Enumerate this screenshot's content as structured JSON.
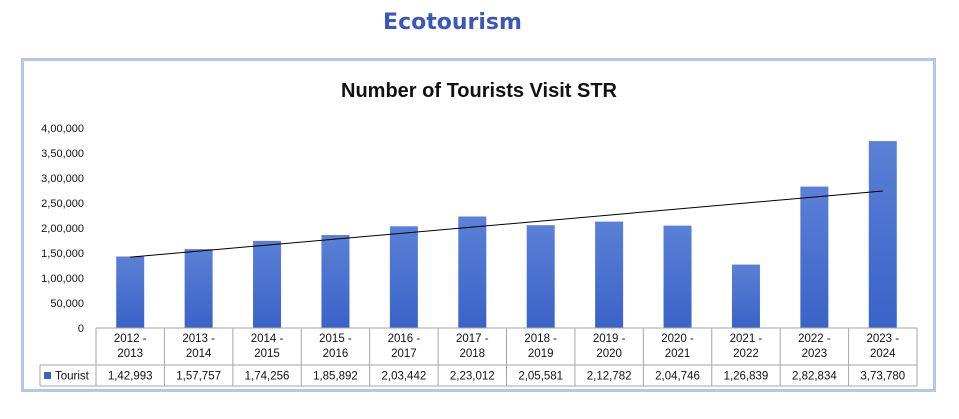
{
  "page": {
    "heading": "Ecotourism"
  },
  "chart_data": {
    "type": "bar",
    "title": "Number of Tourists Visit STR",
    "xlabel": "",
    "ylabel": "",
    "ylim": [
      0,
      400000
    ],
    "yticks": [
      0,
      50000,
      100000,
      150000,
      200000,
      250000,
      300000,
      350000,
      400000
    ],
    "ytick_labels": [
      "0",
      "50,000",
      "1,00,000",
      "1,50,000",
      "2,00,000",
      "2,50,000",
      "3,00,000",
      "3,50,000",
      "4,00,000"
    ],
    "categories": [
      [
        "2012 -",
        "2013"
      ],
      [
        "2013 -",
        "2014"
      ],
      [
        "2014 -",
        "2015"
      ],
      [
        "2015 -",
        "2016"
      ],
      [
        "2016 -",
        "2017"
      ],
      [
        "2017 -",
        "2018"
      ],
      [
        "2018 -",
        "2019"
      ],
      [
        "2019 -",
        "2020"
      ],
      [
        "2020 -",
        "2021"
      ],
      [
        "2021 -",
        "2022"
      ],
      [
        "2022 -",
        "2023"
      ],
      [
        "2023 -",
        "2024"
      ]
    ],
    "series": [
      {
        "name": "Tourist",
        "values": [
          142993,
          157757,
          174256,
          185892,
          203442,
          223012,
          205581,
          212782,
          204746,
          126839,
          282834,
          373780
        ],
        "value_labels": [
          "1,42,993",
          "1,57,757",
          "1,74,256",
          "1,85,892",
          "2,03,442",
          "2,23,012",
          "2,05,581",
          "2,12,782",
          "2,04,746",
          "1,26,839",
          "2,82,834",
          "3,73,780"
        ]
      }
    ],
    "trendline": "linear",
    "grid": false,
    "legend": "data-table-row",
    "colors": {
      "bar_top": "#5a80d6",
      "bar_bottom": "#3a63c8",
      "trendline": "#000000",
      "frame": "#b7c5ee"
    }
  }
}
